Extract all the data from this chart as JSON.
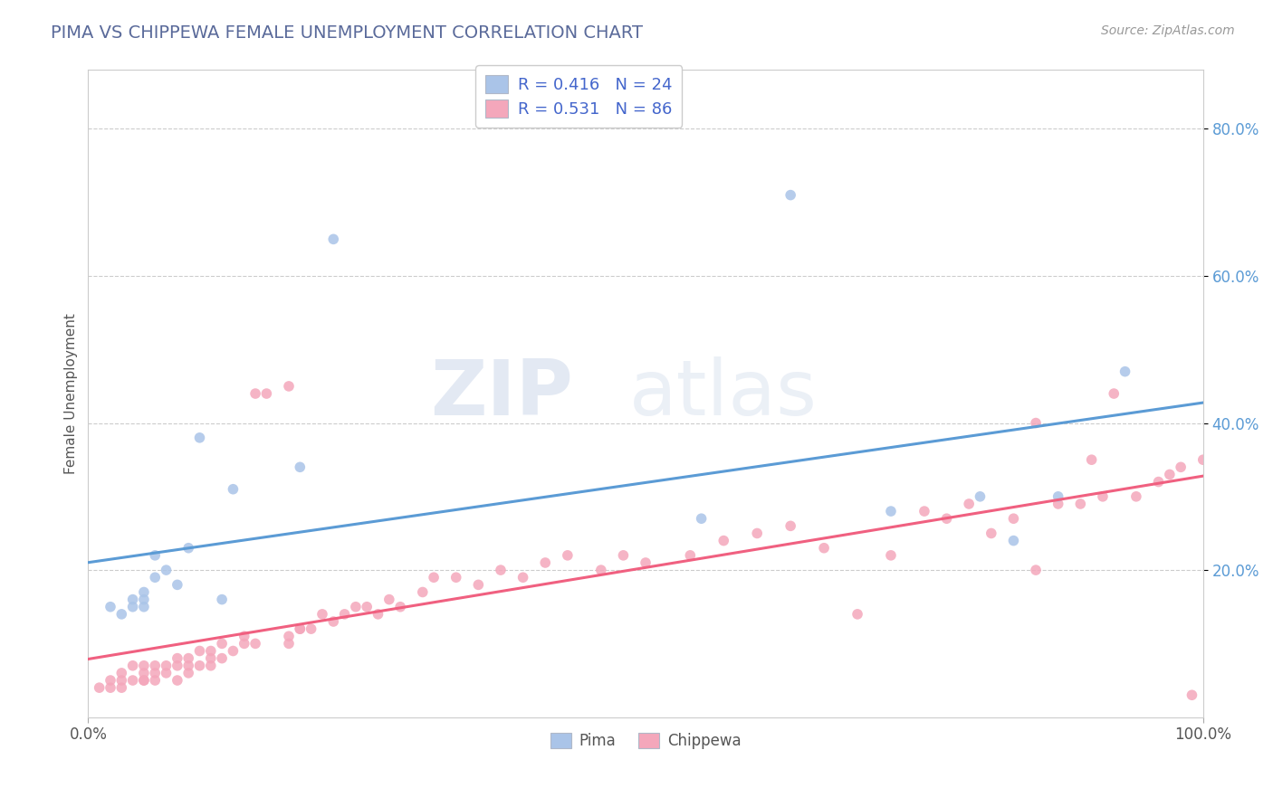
{
  "title": "PIMA VS CHIPPEWA FEMALE UNEMPLOYMENT CORRELATION CHART",
  "source": "Source: ZipAtlas.com",
  "ylabel": "Female Unemployment",
  "xlim": [
    0.0,
    1.0
  ],
  "ylim": [
    0.0,
    0.88
  ],
  "title_color": "#5a6a9a",
  "title_fontsize": 14,
  "background_color": "#ffffff",
  "pima_color": "#aac4e8",
  "chippewa_color": "#f4a7bb",
  "pima_line_color": "#5b9bd5",
  "chippewa_line_color": "#f06080",
  "legend_r_pima": "R = 0.416",
  "legend_n_pima": "N = 24",
  "legend_r_chippewa": "R = 0.531",
  "legend_n_chippewa": "N = 86",
  "pima_x": [
    0.02,
    0.03,
    0.04,
    0.04,
    0.05,
    0.05,
    0.05,
    0.06,
    0.06,
    0.07,
    0.08,
    0.09,
    0.1,
    0.12,
    0.13,
    0.19,
    0.22,
    0.55,
    0.63,
    0.72,
    0.8,
    0.83,
    0.87,
    0.93
  ],
  "pima_y": [
    0.15,
    0.14,
    0.15,
    0.16,
    0.15,
    0.16,
    0.17,
    0.19,
    0.22,
    0.2,
    0.18,
    0.23,
    0.38,
    0.16,
    0.31,
    0.34,
    0.65,
    0.27,
    0.71,
    0.28,
    0.3,
    0.24,
    0.3,
    0.47
  ],
  "chippewa_x": [
    0.01,
    0.02,
    0.02,
    0.03,
    0.03,
    0.03,
    0.04,
    0.04,
    0.05,
    0.05,
    0.05,
    0.05,
    0.06,
    0.06,
    0.06,
    0.07,
    0.07,
    0.08,
    0.08,
    0.08,
    0.09,
    0.09,
    0.09,
    0.1,
    0.1,
    0.11,
    0.11,
    0.11,
    0.12,
    0.12,
    0.13,
    0.14,
    0.14,
    0.15,
    0.15,
    0.16,
    0.18,
    0.18,
    0.18,
    0.19,
    0.19,
    0.2,
    0.21,
    0.22,
    0.23,
    0.24,
    0.25,
    0.26,
    0.27,
    0.28,
    0.3,
    0.31,
    0.33,
    0.35,
    0.37,
    0.39,
    0.41,
    0.43,
    0.46,
    0.48,
    0.5,
    0.54,
    0.57,
    0.6,
    0.63,
    0.66,
    0.69,
    0.72,
    0.75,
    0.77,
    0.79,
    0.81,
    0.83,
    0.85,
    0.87,
    0.89,
    0.91,
    0.92,
    0.94,
    0.96,
    0.97,
    0.98,
    0.99,
    1.0,
    0.85,
    0.9
  ],
  "chippewa_y": [
    0.04,
    0.04,
    0.05,
    0.04,
    0.05,
    0.06,
    0.05,
    0.07,
    0.05,
    0.06,
    0.05,
    0.07,
    0.05,
    0.06,
    0.07,
    0.06,
    0.07,
    0.05,
    0.07,
    0.08,
    0.06,
    0.07,
    0.08,
    0.07,
    0.09,
    0.07,
    0.08,
    0.09,
    0.08,
    0.1,
    0.09,
    0.1,
    0.11,
    0.1,
    0.44,
    0.44,
    0.45,
    0.1,
    0.11,
    0.12,
    0.12,
    0.12,
    0.14,
    0.13,
    0.14,
    0.15,
    0.15,
    0.14,
    0.16,
    0.15,
    0.17,
    0.19,
    0.19,
    0.18,
    0.2,
    0.19,
    0.21,
    0.22,
    0.2,
    0.22,
    0.21,
    0.22,
    0.24,
    0.25,
    0.26,
    0.23,
    0.14,
    0.22,
    0.28,
    0.27,
    0.29,
    0.25,
    0.27,
    0.4,
    0.29,
    0.29,
    0.3,
    0.44,
    0.3,
    0.32,
    0.33,
    0.34,
    0.03,
    0.35,
    0.2,
    0.35
  ],
  "watermark_zip": "ZIP",
  "watermark_atlas": "atlas",
  "grid_color": "#cccccc",
  "grid_style": "--",
  "legend_text_color": "#4466cc",
  "ytick_color": "#5b9bd5",
  "xtick_color": "#555555",
  "label_color": "#555555"
}
